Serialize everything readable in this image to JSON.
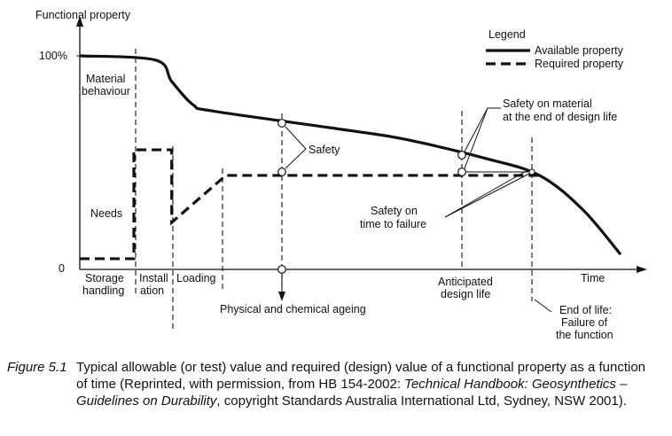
{
  "chart_data": {
    "type": "line",
    "ylabel": "Functional property",
    "xlabel": "Time",
    "y_ticks": [
      "100%",
      "0"
    ],
    "legend": {
      "title": "Legend",
      "placement": "top-right",
      "entries": [
        {
          "label": "Available property",
          "style": "solid"
        },
        {
          "label": "Required property",
          "style": "dashed"
        }
      ]
    },
    "phase_labels": {
      "storage": [
        "Storage",
        "handling"
      ],
      "installation": [
        "Install",
        "ation"
      ],
      "loading": "Loading",
      "material_behaviour": [
        "Material",
        "behaviour"
      ],
      "needs": "Needs",
      "ageing": "Physical and chemical ageing",
      "anticipated": [
        "Anticipated",
        "design life"
      ],
      "end_of_life": [
        "End of life:",
        "Failure of",
        "the function"
      ]
    },
    "annotations": {
      "safety": "Safety",
      "safety_material": [
        "Safety on material",
        "at the end of design life"
      ],
      "safety_failure": [
        "Safety on",
        "time to failure"
      ]
    },
    "series": [
      {
        "name": "Available property",
        "style": "solid",
        "points": [
          [
            0,
            100
          ],
          [
            14,
            98
          ],
          [
            17,
            88
          ],
          [
            21,
            77
          ],
          [
            25,
            74
          ],
          [
            50,
            65
          ],
          [
            60,
            61
          ],
          [
            75,
            52
          ],
          [
            85,
            44
          ],
          [
            93,
            28
          ],
          [
            100,
            7
          ]
        ]
      },
      {
        "name": "Required property",
        "style": "dashed",
        "points": [
          [
            0,
            5
          ],
          [
            10,
            5
          ],
          [
            10,
            56
          ],
          [
            17,
            56
          ],
          [
            17,
            22
          ],
          [
            27,
            44
          ],
          [
            85,
            44
          ]
        ]
      }
    ]
  },
  "caption": {
    "label": "Figure 5.1",
    "text_a": "Typical allowable (or test) value and required (design) value of a functional property as a function of time (Reprinted, with permission, from HB 154-2002: ",
    "italic_a": "Technical Handbook: Geosynthetics – Guidelines on Durability",
    "text_b": ", copyright Standards Australia International Ltd, Sydney, NSW 2001)."
  }
}
